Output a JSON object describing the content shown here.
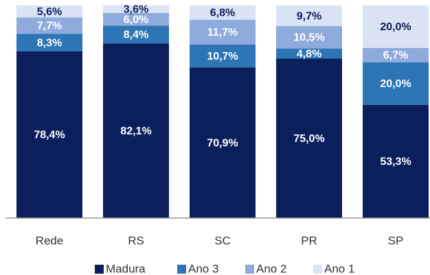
{
  "chart_data": {
    "type": "stacked_bar",
    "categories": [
      "Rede",
      "RS",
      "SC",
      "PR",
      "SP"
    ],
    "series": [
      {
        "name": "Madura",
        "color": "#0b1f5c",
        "values": [
          78.4,
          82.1,
          70.9,
          75.0,
          53.3
        ],
        "value_labels": [
          "78,4%",
          "82,1%",
          "70,9%",
          "75,0%",
          "53,3%"
        ],
        "label_color": "#ffffff"
      },
      {
        "name": "Ano 3",
        "color": "#2e75b6",
        "values": [
          8.3,
          8.4,
          10.7,
          4.8,
          20.0
        ],
        "value_labels": [
          "8,3%",
          "8,4%",
          "10,7%",
          "4,8%",
          "20,0%"
        ],
        "label_color": "#ffffff"
      },
      {
        "name": "Ano 2",
        "color": "#8faadc",
        "values": [
          7.7,
          6.0,
          11.7,
          10.5,
          6.7
        ],
        "value_labels": [
          "7,7%",
          "6,0%",
          "11,7%",
          "10,5%",
          "6,7%"
        ],
        "label_color": "#ffffff"
      },
      {
        "name": "Ano 1",
        "color": "#dae3f3",
        "values": [
          5.6,
          3.6,
          6.8,
          9.7,
          20.0
        ],
        "value_labels": [
          "5,6%",
          "3,6%",
          "6,8%",
          "9,7%",
          "20,0%"
        ],
        "label_color": "#0b1f5c"
      }
    ],
    "ylim": [
      0,
      100
    ],
    "legend": "bottom"
  }
}
